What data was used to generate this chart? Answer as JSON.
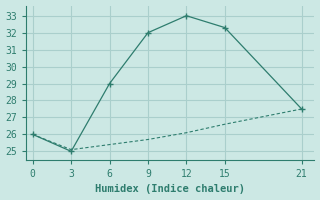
{
  "line1_x": [
    0,
    3,
    6,
    9,
    12,
    15,
    21
  ],
  "line1_y": [
    26,
    25,
    29,
    32,
    33,
    32.3,
    27.5
  ],
  "line2_x": [
    0,
    3,
    6,
    9,
    12,
    15,
    21
  ],
  "line2_y": [
    26,
    25.1,
    25.4,
    25.7,
    26.1,
    26.6,
    27.5
  ],
  "color": "#2e7d6e",
  "bg_color": "#cce8e4",
  "grid_color": "#aacfcc",
  "xlabel": "Humidex (Indice chaleur)",
  "xlim": [
    -0.5,
    22
  ],
  "ylim": [
    24.5,
    33.6
  ],
  "xticks": [
    0,
    3,
    6,
    9,
    12,
    15,
    21
  ],
  "yticks": [
    25,
    26,
    27,
    28,
    29,
    30,
    31,
    32,
    33
  ],
  "marker": "+"
}
